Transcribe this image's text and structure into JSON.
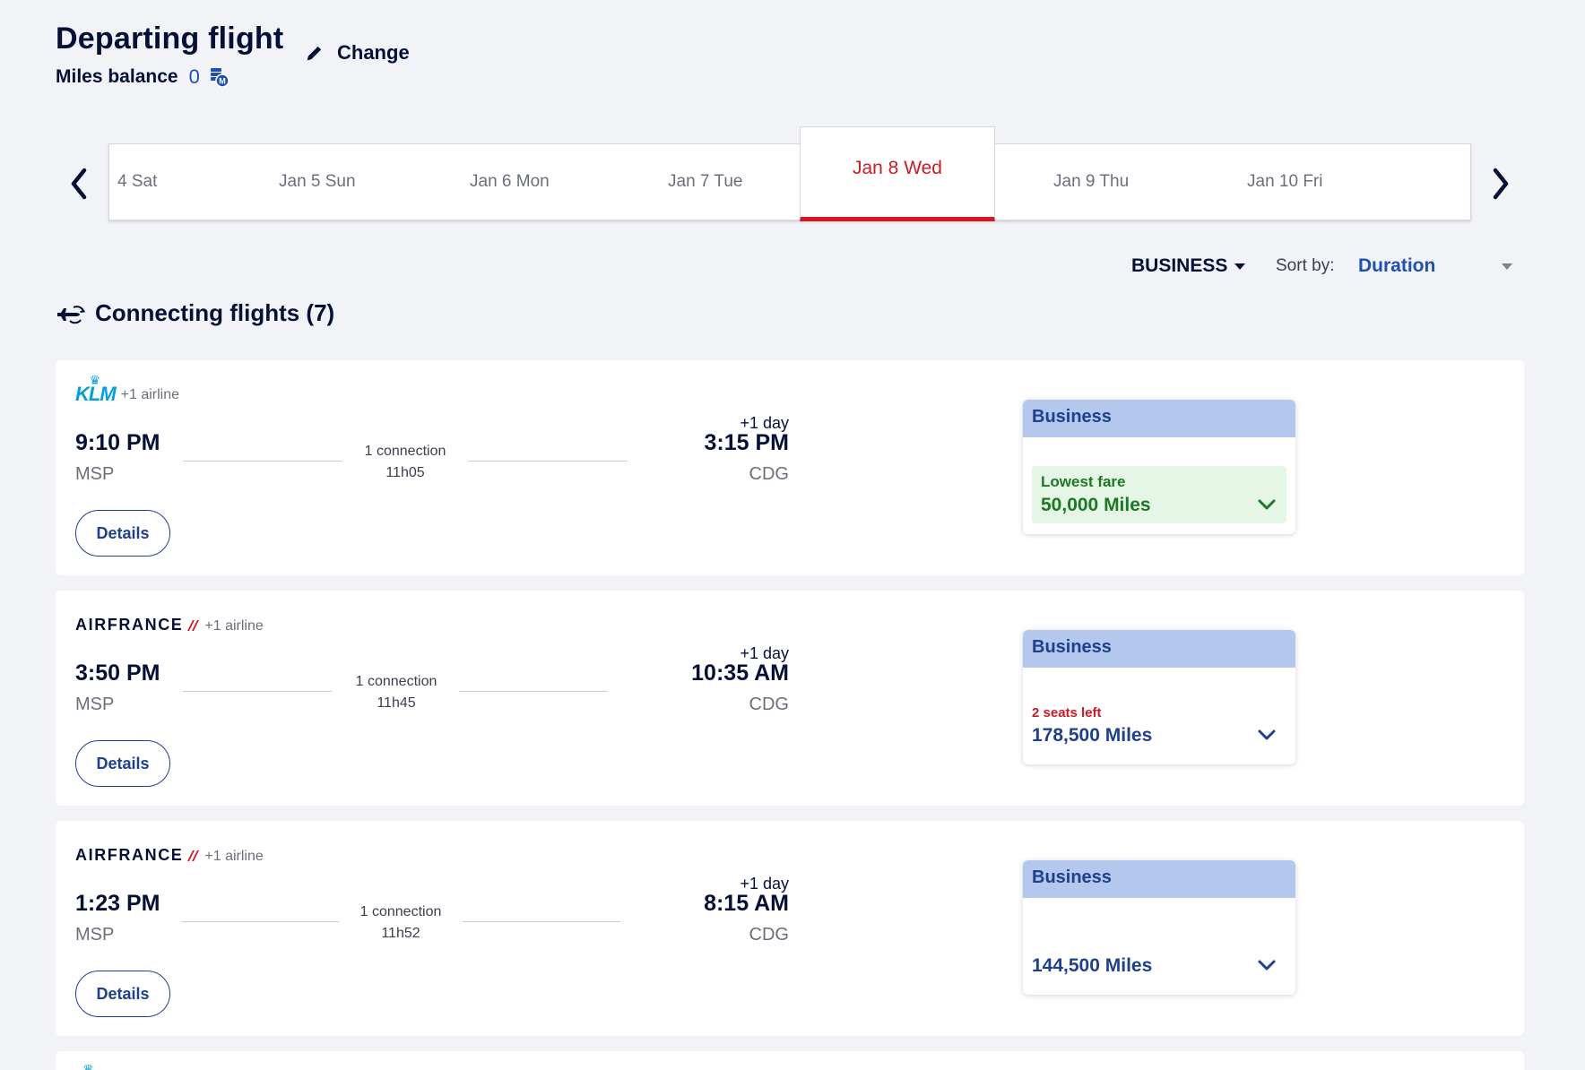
{
  "header": {
    "title": "Departing flight",
    "change_label": "Change",
    "miles_label": "Miles balance",
    "miles_value": "0"
  },
  "dates": [
    {
      "label": "4 Sat"
    },
    {
      "label": "Jan 5 Sun"
    },
    {
      "label": "Jan 6 Mon"
    },
    {
      "label": "Jan 7 Tue"
    },
    {
      "label": "Jan 8 Wed"
    },
    {
      "label": "Jan 9 Thu"
    },
    {
      "label": "Jan 10 Fri"
    }
  ],
  "toolbar": {
    "cabin": "BUSINESS",
    "sort_label": "Sort by:",
    "sort_value": "Duration"
  },
  "section": {
    "title": "Connecting flights (7)"
  },
  "flights": [
    {
      "airline": "KLM",
      "plus_airline": "+1 airline",
      "dep_time": "9:10 PM",
      "dep_code": "MSP",
      "connection": "1 connection",
      "duration": "11h05",
      "plus_day": "+1 day",
      "arr_time": "3:15 PM",
      "arr_code": "CDG",
      "details": "Details",
      "fare_class": "Business",
      "fare_note": "Lowest fare",
      "fare_price": "50,000 Miles"
    },
    {
      "airline": "AIRFRANCE",
      "plus_airline": "+1 airline",
      "dep_time": "3:50 PM",
      "dep_code": "MSP",
      "connection": "1 connection",
      "duration": "11h45",
      "plus_day": "+1 day",
      "arr_time": "10:35 AM",
      "arr_code": "CDG",
      "details": "Details",
      "fare_class": "Business",
      "fare_note": "2 seats left",
      "fare_price": "178,500 Miles"
    },
    {
      "airline": "AIRFRANCE",
      "plus_airline": "+1 airline",
      "dep_time": "1:23 PM",
      "dep_code": "MSP",
      "connection": "1 connection",
      "duration": "11h52",
      "plus_day": "+1 day",
      "arr_time": "8:15 AM",
      "arr_code": "CDG",
      "details": "Details",
      "fare_class": "Business",
      "fare_price": "144,500 Miles"
    }
  ]
}
